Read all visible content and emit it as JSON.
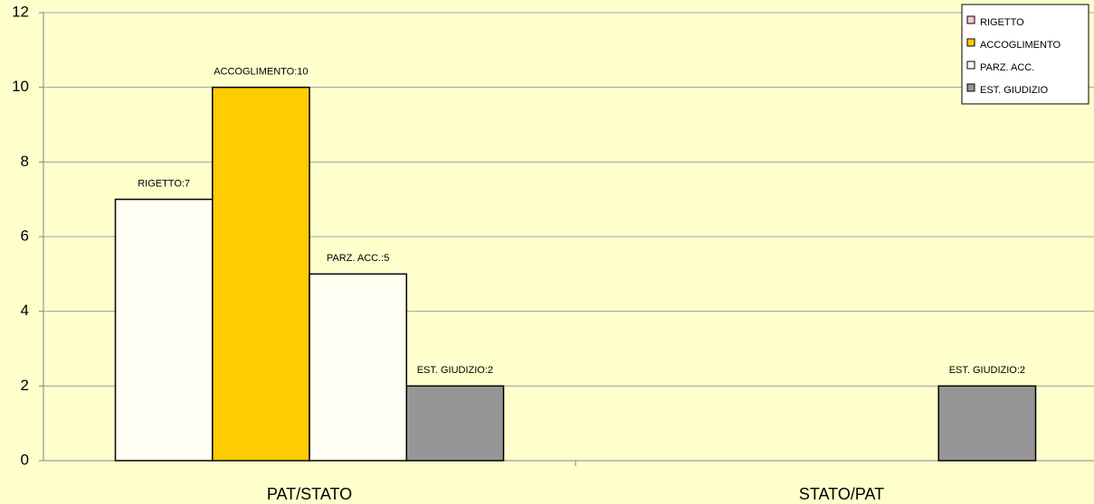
{
  "chart_data": {
    "type": "bar",
    "categories": [
      "PAT/STATO",
      "STATO/PAT"
    ],
    "series": [
      {
        "name": "RIGETTO",
        "color": "#fffff4",
        "legend_color": "#ffc8c8",
        "values": [
          7,
          0
        ],
        "value_labels": [
          "RIGETTO:7",
          null
        ]
      },
      {
        "name": "ACCOGLIMENTO",
        "color": "#ffcc00",
        "values": [
          10,
          0
        ],
        "value_labels": [
          "ACCOGLIMENTO:10",
          null
        ]
      },
      {
        "name": "PARZ. ACC.",
        "color": "#fffff4",
        "values": [
          5,
          0
        ],
        "value_labels": [
          "PARZ. ACC.:5",
          null
        ]
      },
      {
        "name": "EST. GIUDIZIO",
        "color": "#969696",
        "values": [
          2,
          2
        ],
        "value_labels": [
          "EST. GIUDIZIO:2",
          "EST. GIUDIZIO:2"
        ]
      }
    ],
    "ylim": [
      0,
      12
    ],
    "yticks": [
      0,
      2,
      4,
      6,
      8,
      10,
      12
    ],
    "grid": true,
    "legend": "top-right"
  }
}
